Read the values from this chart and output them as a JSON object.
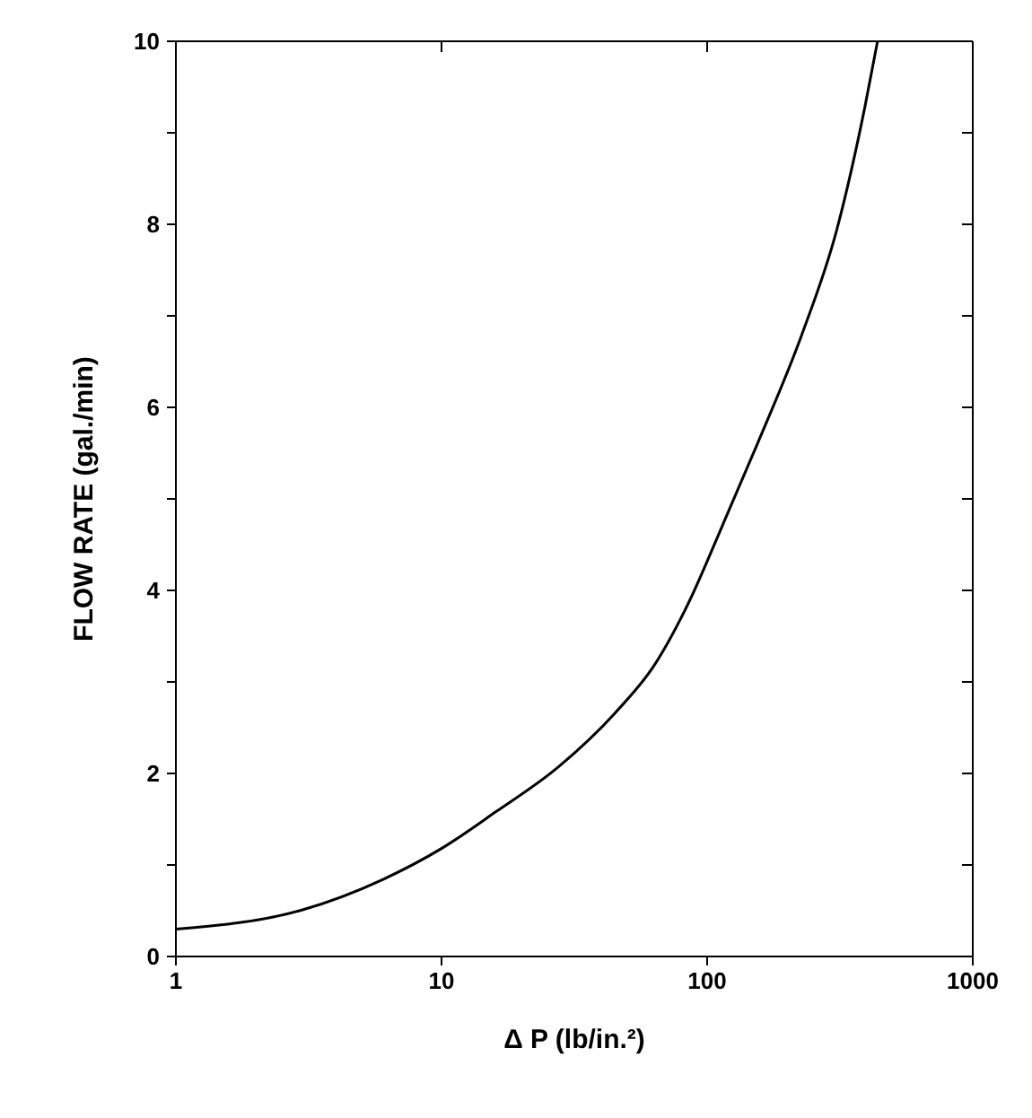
{
  "chart_data": {
    "type": "line",
    "xlabel": "Δ P (lb/in.²)",
    "ylabel": "FLOW RATE (gal./min)",
    "log": "x",
    "xlim": [
      1,
      1000
    ],
    "xticks": [
      1,
      10,
      100,
      1000
    ],
    "ylim": [
      0,
      10
    ],
    "yticks": [
      0,
      {
        "value": 1,
        "label": null
      },
      2,
      {
        "value": 3,
        "label": null
      },
      4,
      {
        "value": 5,
        "label": null
      },
      6,
      {
        "value": 7,
        "label": null
      },
      8,
      {
        "value": 9,
        "label": null
      },
      10
    ],
    "grid": false,
    "legend": false,
    "marker": "none",
    "line_style": "solid",
    "series": [
      {
        "color": "#000000",
        "x": [
          1,
          3,
          6,
          10,
          16,
          27.5,
          45,
          63.5,
          85,
          115,
          154,
          229,
          307,
          393,
          438
        ],
        "values": [
          0.3,
          0.51,
          0.84,
          1.18,
          1.58,
          2.07,
          2.66,
          3.19,
          3.86,
          4.73,
          5.59,
          6.82,
          7.93,
          9.29,
          10
        ]
      }
    ]
  }
}
